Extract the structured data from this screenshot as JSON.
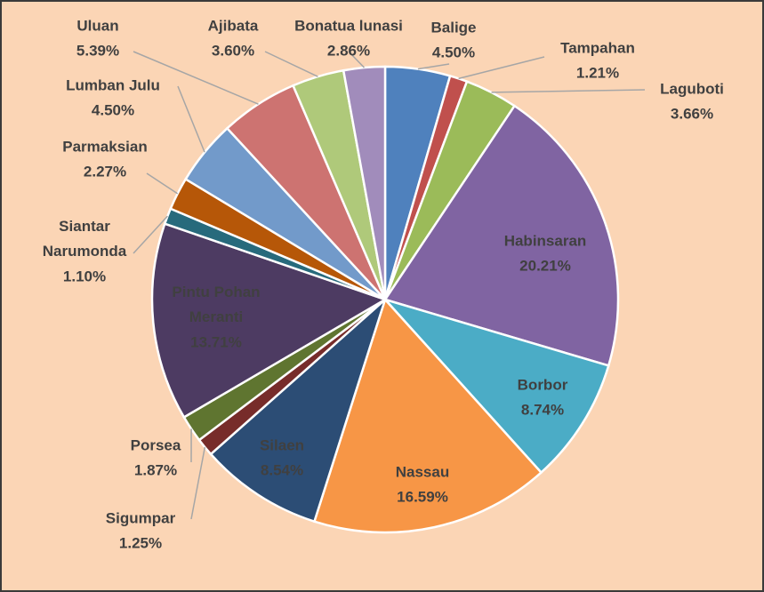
{
  "chart_data": {
    "type": "pie",
    "categories": [
      "Balige",
      "Tampahan",
      "Laguboti",
      "Habinsaran",
      "Borbor",
      "Nassau",
      "Silaen",
      "Sigumpar",
      "Porsea",
      "Pintu Pohan Meranti",
      "Siantar Narumonda",
      "Parmaksian",
      "Lumban Julu",
      "Uluan",
      "Ajibata",
      "Bonatua lunasi"
    ],
    "values": [
      4.5,
      1.21,
      3.66,
      20.21,
      8.74,
      16.59,
      8.54,
      1.25,
      1.87,
      13.71,
      1.1,
      2.27,
      4.5,
      5.39,
      3.6,
      2.86
    ],
    "value_labels": [
      "4.50%",
      "1.21%",
      "3.66%",
      "20.21%",
      "8.74%",
      "16.59%",
      "8.54%",
      "1.25%",
      "1.87%",
      "13.71%",
      "1.10%",
      "2.27%",
      "4.50%",
      "5.39%",
      "3.60%",
      "2.86%"
    ],
    "colors": [
      "#4f81bd",
      "#c0504d",
      "#9bbb59",
      "#8064a2",
      "#4bacc6",
      "#f79646",
      "#2c4d75",
      "#772c2a",
      "#5f7530",
      "#4d3b62",
      "#276a7c",
      "#b65708",
      "#729aca",
      "#cd7371",
      "#afc97a",
      "#a18cbb"
    ]
  }
}
